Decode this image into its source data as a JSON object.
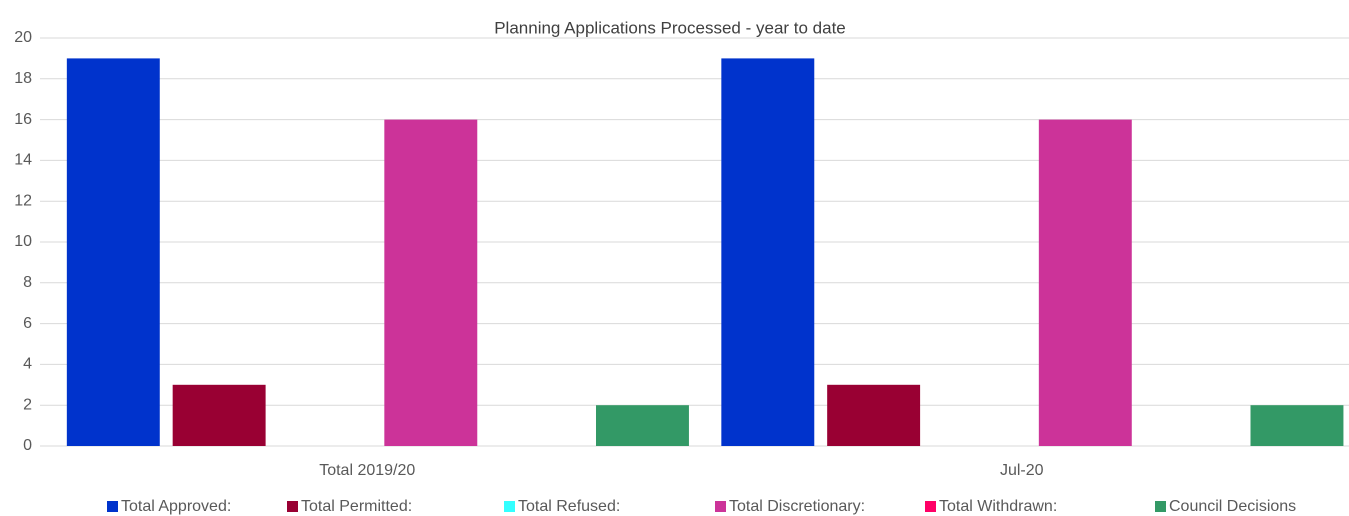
{
  "chart_data": {
    "type": "bar",
    "title": "Planning Applications Processed - year to date",
    "categories": [
      "Total 2019/20",
      "Jul-20"
    ],
    "series": [
      {
        "name": "Total Approved:",
        "color": "#0033cc",
        "values": [
          19,
          19
        ]
      },
      {
        "name": "Total Permitted:",
        "color": "#990033",
        "values": [
          3,
          3
        ]
      },
      {
        "name": "Total Refused:",
        "color": "#33ffff",
        "values": [
          0,
          0
        ]
      },
      {
        "name": "Total Discretionary:",
        "color": "#cc3399",
        "values": [
          16,
          16
        ]
      },
      {
        "name": "Total Withdrawn:",
        "color": "#ff0066",
        "values": [
          0,
          0
        ]
      },
      {
        "name": "Council Decisions",
        "color": "#339966",
        "values": [
          2,
          2
        ]
      }
    ],
    "ylim": [
      0,
      20
    ],
    "yticks": [
      0,
      2,
      4,
      6,
      8,
      10,
      12,
      14,
      16,
      18,
      20
    ],
    "grid": true,
    "legend": "bottom"
  }
}
